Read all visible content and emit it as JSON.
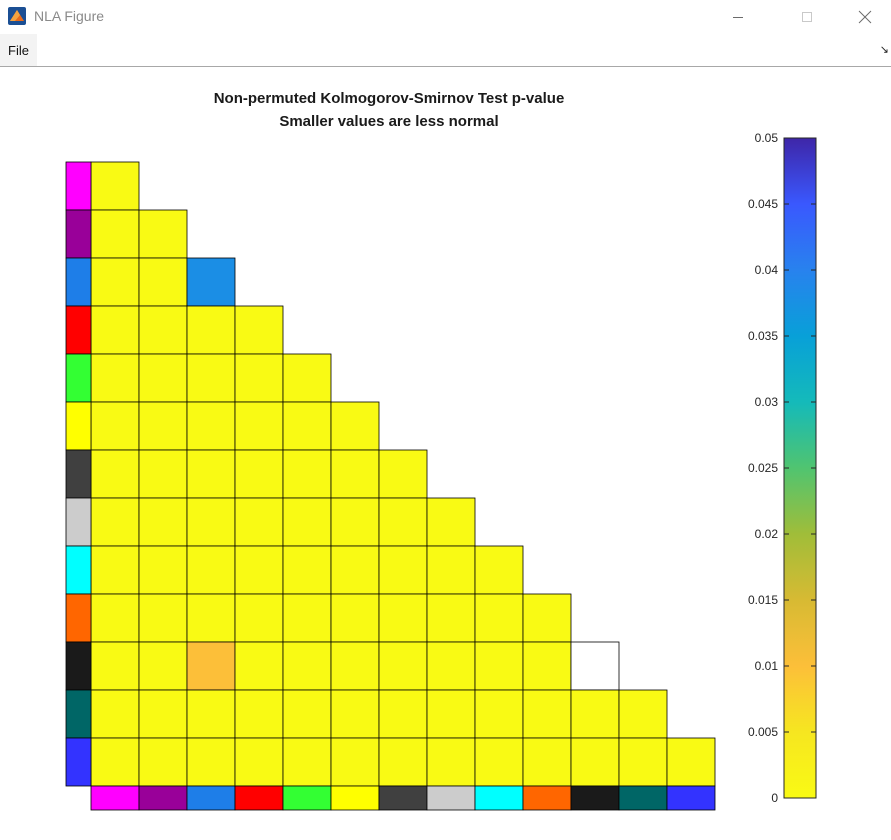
{
  "window": {
    "title": "NLA Figure",
    "icon": "matlab-icon",
    "controls": [
      "minimize-icon",
      "maximize-icon",
      "close-icon"
    ]
  },
  "menu": {
    "file_label": "File",
    "dock_icon": "dock-arrow-icon"
  },
  "chart_data": {
    "type": "heatmap",
    "title": "Non-permuted Kolmogorov-Smirnov Test p-value",
    "subtitle": "Smaller values are less normal",
    "colorbar": {
      "ticks": [
        0,
        0.005,
        0.01,
        0.015,
        0.02,
        0.025,
        0.03,
        0.035,
        0.04,
        0.045,
        0.05
      ],
      "tick_labels": [
        "0",
        "0.005",
        "0.01",
        "0.015",
        "0.02",
        "0.025",
        "0.03",
        "0.035",
        "0.04",
        "0.045",
        "0.05"
      ],
      "range": [
        0,
        0.05
      ]
    },
    "network_colors": [
      "#ff00ff",
      "#990099",
      "#1e7ee8",
      "#ff0000",
      "#33ff33",
      "#ffff00",
      "#404040",
      "#cccccc",
      "#00ffff",
      "#ff6600",
      "#1a1a1a",
      "#006666",
      "#3333ff"
    ],
    "matrix_lower_triangular": [
      [
        0
      ],
      [
        0,
        0
      ],
      [
        0,
        0,
        0.038
      ],
      [
        0,
        0,
        0,
        0
      ],
      [
        0,
        0,
        0,
        0,
        0
      ],
      [
        0,
        0,
        0,
        0,
        0,
        0
      ],
      [
        0,
        0,
        0,
        0,
        0,
        0,
        0
      ],
      [
        0,
        0,
        0,
        0,
        0,
        0,
        0,
        0
      ],
      [
        0,
        0,
        0,
        0,
        0,
        0,
        0,
        0,
        0
      ],
      [
        0,
        0,
        0,
        0,
        0,
        0,
        0,
        0,
        0,
        0
      ],
      [
        0,
        0,
        0.01,
        0,
        0,
        0,
        0,
        0,
        0,
        0,
        null
      ],
      [
        0,
        0,
        0,
        0,
        0,
        0,
        0,
        0,
        0,
        0,
        0,
        0
      ],
      [
        0,
        0,
        0,
        0,
        0,
        0,
        0,
        0,
        0,
        0,
        0,
        0,
        0
      ]
    ]
  }
}
